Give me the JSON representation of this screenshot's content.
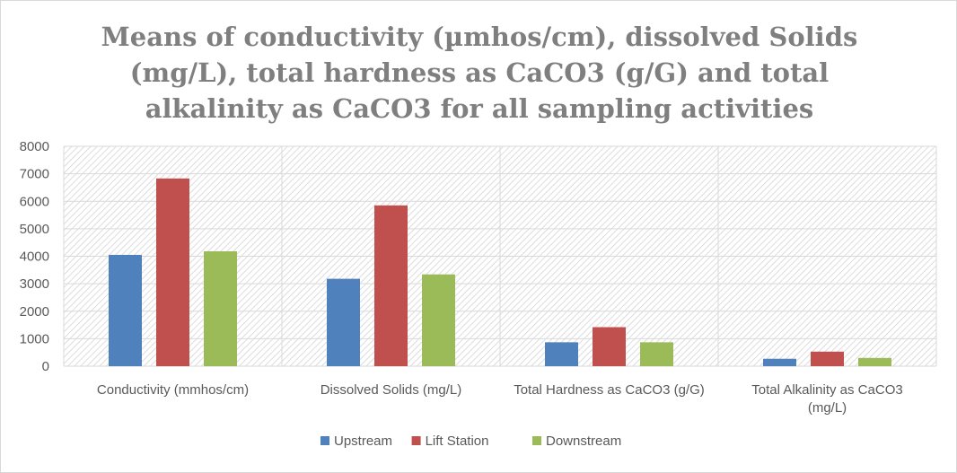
{
  "chart_data": {
    "type": "bar",
    "title": "Means of conductivity (µmhos/cm), dissolved Solids\n(mg/L), total hardness as CaCO3 (g/G) and total\nalkalinity as CaCO3 for all sampling activities",
    "categories": [
      [
        "Conductivity (mmhos/cm)"
      ],
      [
        "Dissolved Solids (mg/L)"
      ],
      [
        "Total Hardness as CaCO3 (g/G)"
      ],
      [
        "Total Alkalinity as CaCO3",
        "(mg/L)"
      ]
    ],
    "series": [
      {
        "name": "Upstream",
        "color": "#4f81bd",
        "values": [
          4050,
          3180,
          870,
          270
        ]
      },
      {
        "name": "Lift Station",
        "color": "#c0504d",
        "values": [
          6830,
          5850,
          1420,
          530
        ]
      },
      {
        "name": "Downstream",
        "color": "#9bbb59",
        "values": [
          4180,
          3340,
          870,
          300
        ]
      }
    ],
    "ylim": [
      0,
      8000
    ],
    "yticks": [
      0,
      1000,
      2000,
      3000,
      4000,
      5000,
      6000,
      7000,
      8000
    ],
    "ytick_labels": [
      "0",
      "1000",
      "2000",
      "3000",
      "4000",
      "5000",
      "6000",
      "7000",
      "8000"
    ],
    "xlabel": "",
    "ylabel": "",
    "legend_position": "bottom",
    "grid": true
  }
}
